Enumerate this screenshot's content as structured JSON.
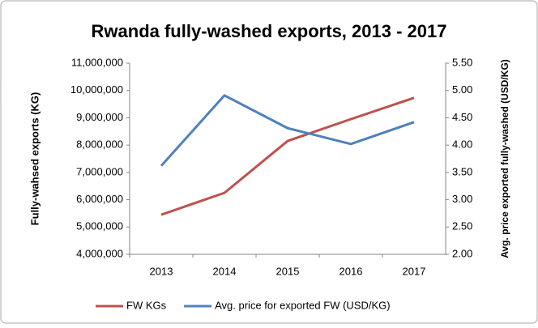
{
  "chart_data": {
    "type": "line",
    "title": "Rwanda fully-washed exports, 2013 - 2017",
    "y_label": "Fully-wahsed exports (KG)",
    "y2_label": "Avg. price exported fully-washed (USD/KG)",
    "categories": [
      "2013",
      "2014",
      "2015",
      "2016",
      "2017"
    ],
    "series": [
      {
        "name": "FW KGs",
        "color": "#c0504d",
        "values": [
          5450000,
          6250000,
          8150000,
          8950000,
          9730000
        ]
      },
      {
        "name": "Avg. price for exported FW (USD/KG)",
        "color": "#4f81bd",
        "axis": "y2",
        "values": [
          3.62,
          4.91,
          4.31,
          4.02,
          4.42
        ]
      }
    ],
    "ylim": [
      4000000,
      11000000
    ],
    "yticks": [
      {
        "value": 4000000,
        "label": "4,000,000"
      },
      {
        "value": 5000000,
        "label": "5,000,000"
      },
      {
        "value": 6000000,
        "label": "6,000,000"
      },
      {
        "value": 7000000,
        "label": "7,000,000"
      },
      {
        "value": 8000000,
        "label": "8,000,000"
      },
      {
        "value": 9000000,
        "label": "9,000,000"
      },
      {
        "value": 10000000,
        "label": "10,000,000"
      },
      {
        "value": 11000000,
        "label": "11,000,000"
      }
    ],
    "y2lim": [
      2,
      5.5
    ],
    "y2ticks": [
      {
        "value": 2,
        "label": "2.00"
      },
      {
        "value": 2.5,
        "label": "2.50"
      },
      {
        "value": 3,
        "label": "3.00"
      },
      {
        "value": 3.5,
        "label": "3.50"
      },
      {
        "value": 4,
        "label": "4.00"
      },
      {
        "value": 4.5,
        "label": "4.50"
      },
      {
        "value": 5,
        "label": "5.00"
      },
      {
        "value": 5.5,
        "label": "5.50"
      }
    ],
    "grid": false,
    "legend": "bottom"
  }
}
